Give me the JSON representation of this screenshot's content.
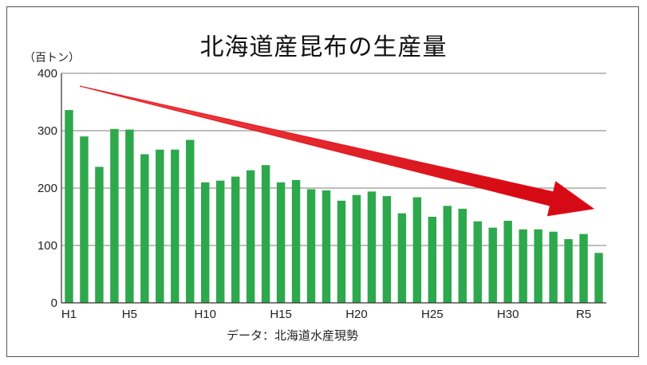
{
  "chart_data": {
    "type": "bar",
    "title": "北海道産昆布の生産量",
    "unit_label": "（百トン）",
    "source": "データ：北海道水産現勢",
    "ylim": [
      0,
      400
    ],
    "yticks": [
      0,
      100,
      200,
      300,
      400
    ],
    "grid": true,
    "bar_color": "#2ea84c",
    "arrow_color": "#e8121c",
    "categories": [
      "H1",
      "H2",
      "H3",
      "H4",
      "H5",
      "H6",
      "H7",
      "H8",
      "H9",
      "H10",
      "H11",
      "H12",
      "H13",
      "H14",
      "H15",
      "H16",
      "H17",
      "H18",
      "H19",
      "H20",
      "H21",
      "H22",
      "H23",
      "H24",
      "H25",
      "H26",
      "H27",
      "H28",
      "H29",
      "H30",
      "R1",
      "R2",
      "R3",
      "R4",
      "R5",
      "R6"
    ],
    "xtick_labels": [
      "H1",
      "H5",
      "H10",
      "H15",
      "H20",
      "H25",
      "H30",
      "R5"
    ],
    "values": [
      336,
      290,
      237,
      303,
      302,
      259,
      267,
      267,
      284,
      210,
      213,
      220,
      231,
      240,
      210,
      214,
      198,
      196,
      178,
      188,
      194,
      186,
      156,
      184,
      150,
      169,
      164,
      142,
      131,
      143,
      128,
      128,
      124,
      111,
      120,
      87
    ]
  }
}
